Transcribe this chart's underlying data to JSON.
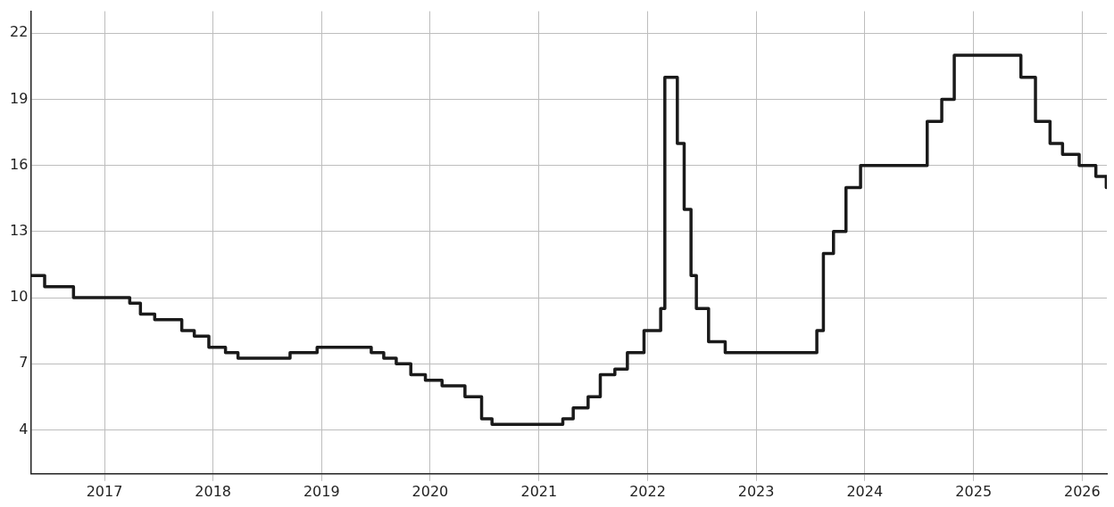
{
  "chart_data": {
    "type": "step",
    "xlim": [
      "2016-04-28",
      "2026-03-25"
    ],
    "xticks": [
      "2017",
      "2018",
      "2019",
      "2020",
      "2021",
      "2022",
      "2023",
      "2024",
      "2025",
      "2026"
    ],
    "ylim": [
      2,
      23
    ],
    "yticks": [
      4,
      7,
      10,
      13,
      16,
      19,
      22
    ],
    "grid": true,
    "legend": false,
    "marker": "none",
    "line_style": "solid",
    "series": [
      {
        "color": "#1a1a1a",
        "x": [
          "2016-04-28",
          "2016-06-14",
          "2016-09-19",
          "2017-03-27",
          "2017-05-02",
          "2017-06-19",
          "2017-09-18",
          "2017-10-30",
          "2017-12-18",
          "2018-02-12",
          "2018-03-26",
          "2018-09-17",
          "2018-12-17",
          "2019-06-17",
          "2019-07-29",
          "2019-09-09",
          "2019-10-28",
          "2019-12-16",
          "2020-02-10",
          "2020-04-27",
          "2020-06-22",
          "2020-07-27",
          "2021-03-22",
          "2021-04-26",
          "2021-06-15",
          "2021-07-26",
          "2021-09-13",
          "2021-10-25",
          "2021-12-20",
          "2022-02-14",
          "2022-02-28",
          "2022-04-11",
          "2022-05-04",
          "2022-05-27",
          "2022-06-14",
          "2022-07-25",
          "2022-09-19",
          "2023-07-24",
          "2023-08-15",
          "2023-09-18",
          "2023-10-30",
          "2023-12-18",
          "2024-07-29",
          "2024-09-16",
          "2024-10-28",
          "2025-06-09",
          "2025-07-28",
          "2025-09-15",
          "2025-10-27",
          "2025-12-22",
          "2026-02-16",
          "2026-03-23"
        ],
        "values": [
          11,
          10.5,
          10,
          9.75,
          9.25,
          9,
          8.5,
          8.25,
          7.75,
          7.5,
          7.25,
          7.5,
          7.75,
          7.5,
          7.25,
          7,
          6.5,
          6.25,
          6,
          5.5,
          4.5,
          4.25,
          4.5,
          5,
          5.5,
          6.5,
          6.75,
          7.5,
          8.5,
          9.5,
          20,
          17,
          14,
          11,
          9.5,
          8,
          7.5,
          8.5,
          12,
          13,
          15,
          16,
          18,
          19,
          21,
          20,
          18,
          17,
          16.5,
          16,
          15.5,
          15
        ]
      }
    ]
  }
}
